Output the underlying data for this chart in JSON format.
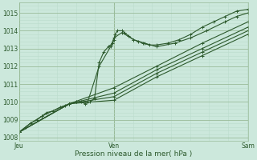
{
  "title": "Pression niveau de la mer( hPa )",
  "bg_color": "#cce8dc",
  "grid_major_color": "#99bb99",
  "grid_minor_color": "#bbddcc",
  "line_color": "#2d5a2d",
  "ylim": [
    1007.8,
    1015.6
  ],
  "yticks_major": [
    1008,
    1009,
    1010,
    1011,
    1012,
    1013,
    1014,
    1015
  ],
  "xlim": [
    0.0,
    1.0
  ],
  "xtick_positions": [
    0.0,
    0.415,
    1.0
  ],
  "xtick_labels": [
    "Jeu",
    "Ven",
    "Sam"
  ],
  "series": [
    [
      [
        0.0,
        1008.3
      ],
      [
        0.03,
        1008.6
      ],
      [
        0.05,
        1008.8
      ],
      [
        0.08,
        1009.0
      ],
      [
        0.1,
        1009.2
      ],
      [
        0.12,
        1009.4
      ],
      [
        0.15,
        1009.5
      ],
      [
        0.18,
        1009.7
      ],
      [
        0.2,
        1009.8
      ],
      [
        0.22,
        1009.9
      ],
      [
        0.25,
        1010.0
      ],
      [
        0.27,
        1010.0
      ],
      [
        0.29,
        1009.9
      ],
      [
        0.31,
        1010.0
      ],
      [
        0.33,
        1010.2
      ],
      [
        0.35,
        1012.2
      ],
      [
        0.37,
        1012.8
      ],
      [
        0.39,
        1013.1
      ],
      [
        0.4,
        1013.2
      ],
      [
        0.41,
        1013.3
      ],
      [
        0.415,
        1013.5
      ],
      [
        0.42,
        1013.8
      ],
      [
        0.43,
        1014.0
      ],
      [
        0.45,
        1014.0
      ],
      [
        0.46,
        1013.9
      ],
      [
        0.48,
        1013.7
      ],
      [
        0.5,
        1013.5
      ],
      [
        0.52,
        1013.4
      ],
      [
        0.54,
        1013.3
      ],
      [
        0.57,
        1013.2
      ],
      [
        0.6,
        1013.2
      ],
      [
        0.65,
        1013.3
      ],
      [
        0.7,
        1013.5
      ],
      [
        0.75,
        1013.8
      ],
      [
        0.8,
        1014.2
      ],
      [
        0.85,
        1014.5
      ],
      [
        0.9,
        1014.8
      ],
      [
        0.95,
        1015.1
      ],
      [
        1.0,
        1015.2
      ]
    ],
    [
      [
        0.0,
        1008.3
      ],
      [
        0.05,
        1008.8
      ],
      [
        0.1,
        1009.2
      ],
      [
        0.18,
        1009.7
      ],
      [
        0.25,
        1010.0
      ],
      [
        0.3,
        1010.0
      ],
      [
        0.35,
        1012.0
      ],
      [
        0.4,
        1013.1
      ],
      [
        0.415,
        1013.6
      ],
      [
        0.45,
        1013.9
      ],
      [
        0.5,
        1013.5
      ],
      [
        0.55,
        1013.3
      ],
      [
        0.6,
        1013.1
      ],
      [
        0.68,
        1013.3
      ],
      [
        0.75,
        1013.6
      ],
      [
        0.82,
        1014.0
      ],
      [
        0.9,
        1014.5
      ],
      [
        0.95,
        1014.8
      ],
      [
        1.0,
        1015.0
      ]
    ],
    [
      [
        0.0,
        1008.3
      ],
      [
        0.22,
        1009.9
      ],
      [
        0.415,
        1010.8
      ],
      [
        0.6,
        1012.0
      ],
      [
        0.8,
        1013.3
      ],
      [
        1.0,
        1014.5
      ]
    ],
    [
      [
        0.0,
        1008.3
      ],
      [
        0.22,
        1009.9
      ],
      [
        0.415,
        1010.5
      ],
      [
        0.6,
        1011.8
      ],
      [
        0.8,
        1013.0
      ],
      [
        1.0,
        1014.2
      ]
    ],
    [
      [
        0.0,
        1008.3
      ],
      [
        0.22,
        1009.9
      ],
      [
        0.415,
        1010.3
      ],
      [
        0.6,
        1011.6
      ],
      [
        0.8,
        1012.8
      ],
      [
        1.0,
        1014.0
      ]
    ],
    [
      [
        0.0,
        1008.3
      ],
      [
        0.22,
        1009.9
      ],
      [
        0.415,
        1010.1
      ],
      [
        0.6,
        1011.4
      ],
      [
        0.8,
        1012.6
      ],
      [
        1.0,
        1013.8
      ]
    ]
  ],
  "marker": "+",
  "markersize": 3.5,
  "linewidth": 0.8
}
